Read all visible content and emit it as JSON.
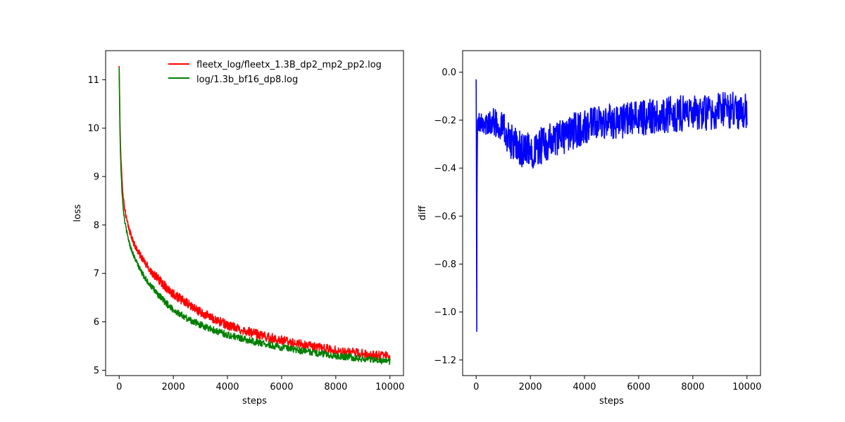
{
  "chart_data": [
    {
      "type": "line",
      "xlabel": "steps",
      "ylabel": "loss",
      "xlim": [
        -500,
        10500
      ],
      "ylim": [
        4.89,
        11.6
      ],
      "xticks": [
        0,
        2000,
        4000,
        6000,
        8000,
        10000
      ],
      "yticks": [
        5,
        6,
        7,
        8,
        9,
        10,
        11
      ],
      "legend": {
        "location": "top-right",
        "frame": false
      },
      "series": [
        {
          "name": "fleetx_log/fleetx_1.3B_dp2_mp2_pp2.log",
          "color": "#ff0000",
          "noise": 0.14,
          "x": [
            0,
            25,
            50,
            100,
            150,
            200,
            300,
            400,
            500,
            600,
            800,
            1000,
            1200,
            1500,
            1800,
            2000,
            2500,
            3000,
            3500,
            4000,
            4500,
            5000,
            5500,
            6000,
            6500,
            7000,
            7500,
            8000,
            8500,
            9000,
            9500,
            10000
          ],
          "y": [
            11.28,
            10.3,
            9.6,
            8.95,
            8.6,
            8.35,
            8.05,
            7.85,
            7.68,
            7.55,
            7.35,
            7.18,
            7.03,
            6.85,
            6.68,
            6.58,
            6.38,
            6.2,
            6.06,
            5.93,
            5.84,
            5.76,
            5.68,
            5.62,
            5.56,
            5.5,
            5.46,
            5.41,
            5.37,
            5.34,
            5.31,
            5.28
          ]
        },
        {
          "name": "log/1.3b_bf16_dp8.log",
          "color": "#008000",
          "noise": 0.1,
          "x": [
            0,
            25,
            50,
            100,
            150,
            200,
            300,
            400,
            500,
            600,
            800,
            1000,
            1200,
            1500,
            1800,
            2000,
            2500,
            3000,
            3500,
            4000,
            4500,
            5000,
            5500,
            6000,
            6500,
            7000,
            7500,
            8000,
            8500,
            9000,
            9500,
            10000
          ],
          "y": [
            11.25,
            10.1,
            9.4,
            8.75,
            8.35,
            8.1,
            7.8,
            7.58,
            7.42,
            7.28,
            7.05,
            6.87,
            6.72,
            6.52,
            6.35,
            6.25,
            6.07,
            5.94,
            5.83,
            5.73,
            5.66,
            5.59,
            5.53,
            5.47,
            5.42,
            5.38,
            5.34,
            5.3,
            5.27,
            5.24,
            5.21,
            5.18
          ]
        }
      ]
    },
    {
      "type": "line",
      "xlabel": "steps",
      "ylabel": "diff",
      "xlim": [
        -500,
        10500
      ],
      "ylim": [
        -1.265,
        0.09
      ],
      "xticks": [
        0,
        2000,
        4000,
        6000,
        8000,
        10000
      ],
      "yticks": [
        0.0,
        -0.2,
        -0.4,
        -0.6,
        -0.8,
        -1.0,
        -1.2
      ],
      "series": [
        {
          "color": "#0000ff",
          "noise": 0.11,
          "x": [
            0,
            10,
            20,
            30,
            50,
            100,
            200,
            400,
            600,
            800,
            1000,
            1200,
            1400,
            1600,
            1800,
            2000,
            2500,
            3000,
            3500,
            4000,
            4500,
            5000,
            5500,
            6000,
            6500,
            7000,
            7500,
            8000,
            8500,
            9000,
            9500,
            10000
          ],
          "y": [
            -0.03,
            -0.4,
            -1.2,
            -0.5,
            -0.2,
            -0.21,
            -0.2,
            -0.22,
            -0.2,
            -0.22,
            -0.23,
            -0.28,
            -0.3,
            -0.32,
            -0.33,
            -0.33,
            -0.3,
            -0.28,
            -0.25,
            -0.23,
            -0.22,
            -0.2,
            -0.2,
            -0.19,
            -0.18,
            -0.18,
            -0.17,
            -0.17,
            -0.17,
            -0.16,
            -0.16,
            -0.16
          ]
        }
      ]
    }
  ]
}
